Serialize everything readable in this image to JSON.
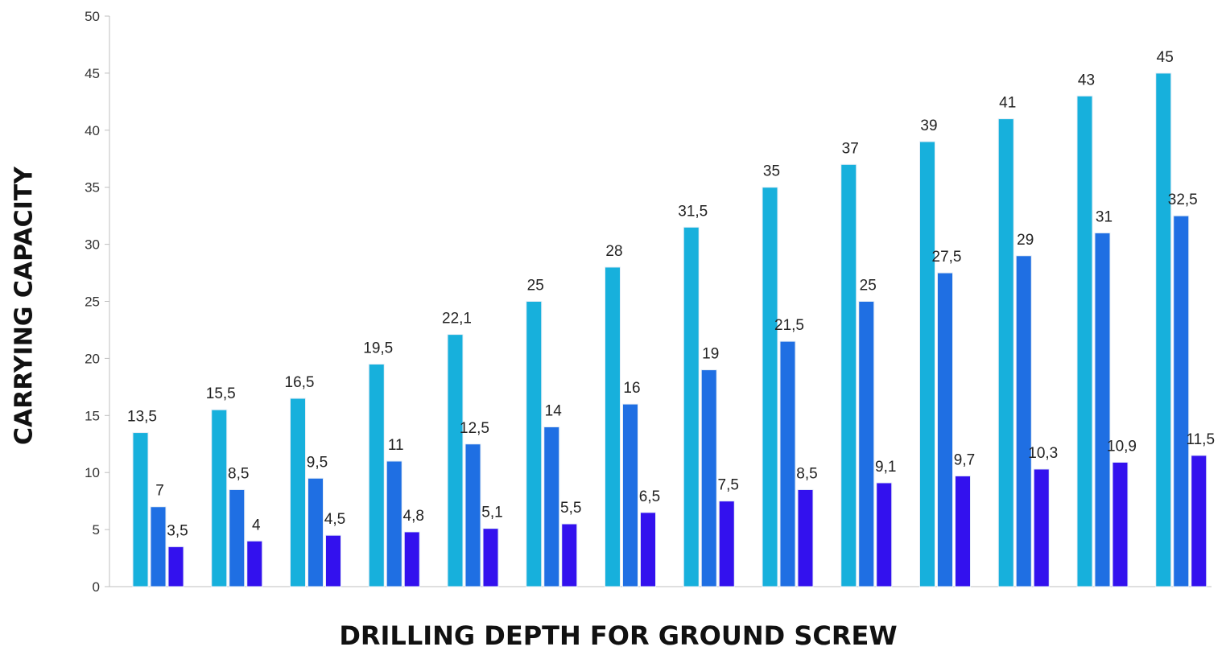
{
  "chart_data": {
    "type": "bar",
    "title": "",
    "xlabel": "DRILLING DEPTH FOR GROUND SCREW",
    "ylabel": "CARRYING CAPACITY",
    "ylim": [
      0,
      50
    ],
    "yticks": [
      "0",
      "5",
      "10",
      "15",
      "20",
      "25",
      "30",
      "35",
      "40",
      "45",
      "50"
    ],
    "grid": false,
    "categories": [
      "",
      "",
      "",
      "",
      "",
      "",
      "",
      "",
      "",
      "",
      "",
      "",
      "",
      ""
    ],
    "series": [
      {
        "color": "#17b0dc",
        "values": [
          13.5,
          15.5,
          16.5,
          19.5,
          22.1,
          25,
          28,
          31.5,
          35,
          37,
          39,
          41,
          43,
          45
        ],
        "labels": [
          "13,5",
          "15,5",
          "16,5",
          "19,5",
          "22,1",
          "25",
          "28",
          "31,5",
          "35",
          "37",
          "39",
          "41",
          "43",
          "45"
        ]
      },
      {
        "color": "#1f6fe3",
        "values": [
          7,
          8.5,
          9.5,
          11,
          12.5,
          14,
          16,
          19,
          21.5,
          25,
          27.5,
          29,
          31,
          32.5
        ],
        "labels": [
          "7",
          "8,5",
          "9,5",
          "11",
          "12,5",
          "14",
          "16",
          "19",
          "21,5",
          "25",
          "27,5",
          "29",
          "31",
          "32,5"
        ]
      },
      {
        "color": "#3311ee",
        "values": [
          3.5,
          4,
          4.5,
          4.8,
          5.1,
          5.5,
          6.5,
          7.5,
          8.5,
          9.1,
          9.7,
          10.3,
          10.9,
          11.5
        ],
        "labels": [
          "3,5",
          "4",
          "4,5",
          "4,8",
          "5,1",
          "5,5",
          "6,5",
          "7,5",
          "8,5",
          "9,1",
          "9,7",
          "10,3",
          "10,9",
          "11,5"
        ]
      }
    ]
  }
}
